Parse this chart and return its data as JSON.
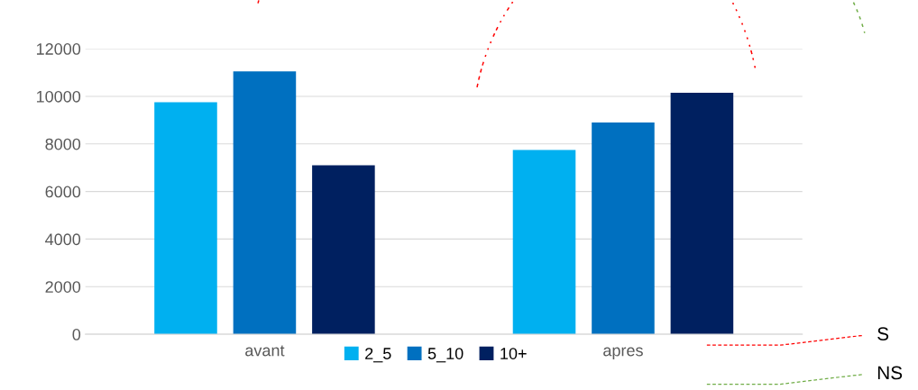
{
  "chart_data": {
    "type": "bar",
    "categories": [
      "avant",
      "apres"
    ],
    "series": [
      {
        "name": "2_5",
        "color": "#00b0f0",
        "values": [
          9750,
          7750
        ]
      },
      {
        "name": "5_10",
        "color": "#0070c0",
        "values": [
          11050,
          8900
        ]
      },
      {
        "name": "10+",
        "color": "#002060",
        "values": [
          7100,
          10150
        ]
      }
    ],
    "ylim": [
      0,
      12000
    ],
    "yticks": [
      0,
      2000,
      4000,
      6000,
      8000,
      10000,
      12000
    ],
    "grid": "y",
    "legend": "bottom",
    "annotations": [
      "S",
      "NS"
    ]
  }
}
